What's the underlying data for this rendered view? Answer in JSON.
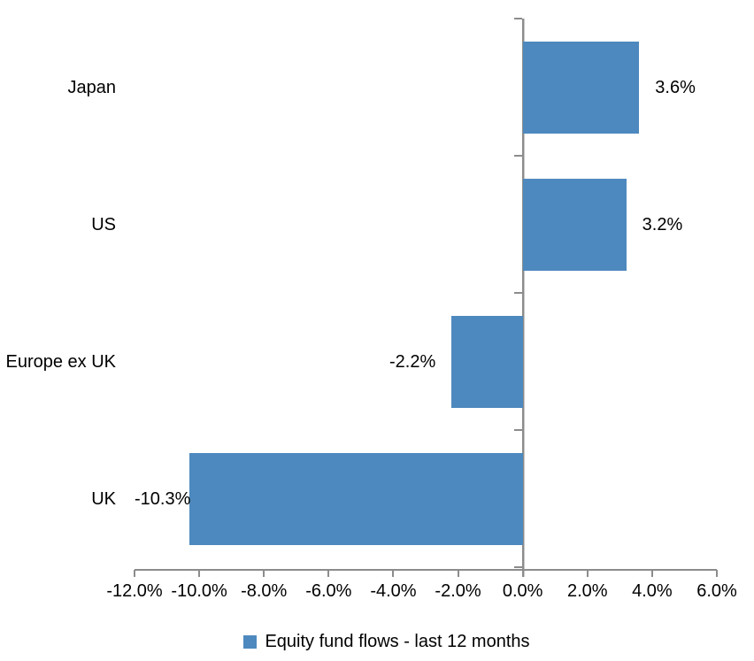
{
  "chart_data": {
    "type": "bar",
    "orientation": "horizontal",
    "title": "",
    "categories": [
      "Japan",
      "US",
      "Europe ex UK",
      "UK"
    ],
    "series": [
      {
        "name": "Equity fund flows - last 12 months",
        "values": [
          3.6,
          3.2,
          -2.2,
          -10.3
        ]
      }
    ],
    "value_labels": [
      "3.6%",
      "3.2%",
      "-2.2%",
      "-10.3%"
    ],
    "xlim": [
      -12,
      6
    ],
    "x_tick_step": 2,
    "x_tick_labels": [
      "-12.0%",
      "-10.0%",
      "-8.0%",
      "-6.0%",
      "-4.0%",
      "-2.0%",
      "0.0%",
      "2.0%",
      "4.0%",
      "6.0%"
    ],
    "grid": false,
    "colors": {
      "bar": "#4d89be",
      "axis": "#8c8c8c",
      "text": "#000000",
      "background": "#ffffff"
    },
    "legend": {
      "position": "bottom",
      "label": "Equity fund flows - last 12 months",
      "swatch_color": "#4d89be"
    }
  }
}
